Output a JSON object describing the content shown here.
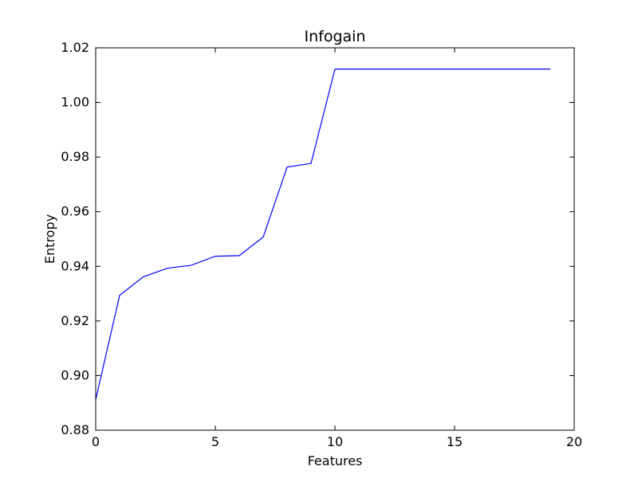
{
  "chart_data": {
    "type": "line",
    "title": "Infogain",
    "xlabel": "Features",
    "ylabel": "Entropy",
    "xlim": [
      0,
      20
    ],
    "ylim": [
      0.88,
      1.02
    ],
    "grid": false,
    "x_ticks": [
      0,
      5,
      10,
      15,
      20
    ],
    "x_tick_labels": [
      "0",
      "5",
      "10",
      "15",
      "20"
    ],
    "y_ticks": [
      0.88,
      0.9,
      0.92,
      0.94,
      0.96,
      0.98,
      1.0,
      1.02
    ],
    "y_tick_labels": [
      "0.88",
      "0.90",
      "0.92",
      "0.94",
      "0.96",
      "0.98",
      "1.00",
      "1.02"
    ],
    "series": [
      {
        "color": "#0000ff",
        "x": [
          0,
          1,
          2,
          3,
          4,
          5,
          6,
          7,
          8,
          9,
          10,
          11,
          12,
          13,
          14,
          15,
          16,
          17,
          18,
          19
        ],
        "y": [
          0.8912,
          0.9294,
          0.9362,
          0.9393,
          0.9404,
          0.9437,
          0.9439,
          0.9507,
          0.9763,
          0.9777,
          1.0122,
          1.0122,
          1.0122,
          1.0122,
          1.0122,
          1.0122,
          1.0122,
          1.0122,
          1.0122,
          1.0122
        ]
      }
    ]
  }
}
